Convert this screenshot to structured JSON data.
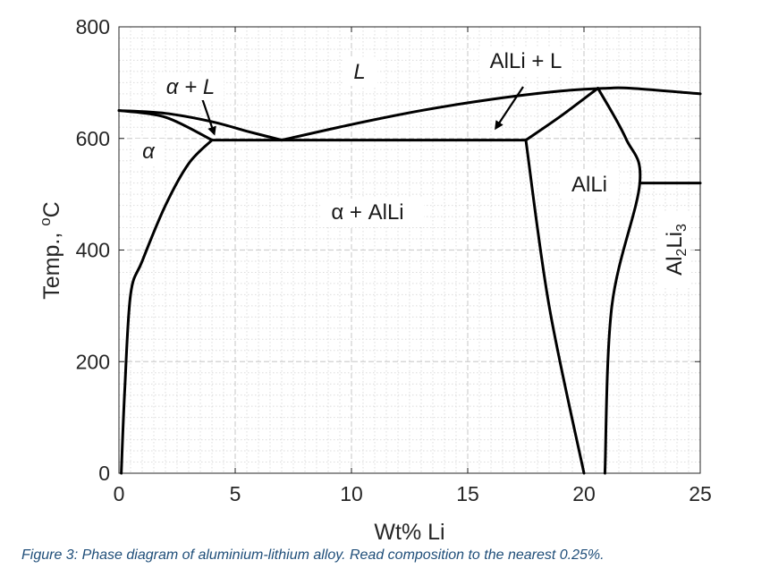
{
  "chart_data": {
    "type": "line",
    "title": "",
    "xlabel": "Wt% Li",
    "ylabel": "Temp., oC",
    "ylabel_main": "Temp., ",
    "ylabel_superscript": "o",
    "ylabel_unit": "C",
    "xlim": [
      0,
      25
    ],
    "ylim": [
      0,
      800
    ],
    "xticks": [
      0,
      5,
      10,
      15,
      20,
      25
    ],
    "yticks": [
      0,
      200,
      400,
      600,
      800
    ],
    "grid": "dotted minor grid with dashed major grid",
    "line_color": "#000000",
    "phase_boundaries": [
      {
        "name": "alpha solvus",
        "points": [
          [
            0.1,
            0
          ],
          [
            0.25,
            150
          ],
          [
            0.5,
            320
          ],
          [
            1,
            380
          ],
          [
            2,
            480
          ],
          [
            3,
            555
          ],
          [
            4,
            597
          ]
        ]
      },
      {
        "name": "alpha solidus",
        "points": [
          [
            0,
            650
          ],
          [
            2,
            638
          ],
          [
            4,
            597
          ]
        ]
      },
      {
        "name": "liquidus left",
        "points": [
          [
            0,
            650
          ],
          [
            2,
            645
          ],
          [
            4,
            630
          ],
          [
            5.5,
            613
          ],
          [
            7,
            597
          ]
        ]
      },
      {
        "name": "liquidus right",
        "points": [
          [
            7,
            597
          ],
          [
            10,
            625
          ],
          [
            13,
            650
          ],
          [
            16,
            670
          ],
          [
            19,
            685
          ],
          [
            21,
            690
          ],
          [
            22,
            690
          ],
          [
            25,
            680
          ]
        ]
      },
      {
        "name": "eutectic isotherm",
        "points": [
          [
            4,
            597
          ],
          [
            17.5,
            597
          ]
        ]
      },
      {
        "name": "AlLi left boundary",
        "points": [
          [
            17.5,
            597
          ],
          [
            18.5,
            300
          ],
          [
            20,
            0
          ]
        ]
      },
      {
        "name": "AlLi liquidus left",
        "points": [
          [
            17.5,
            597
          ],
          [
            19,
            640
          ],
          [
            20.6,
            690
          ]
        ]
      },
      {
        "name": "AlLi right boundary",
        "points": [
          [
            20.6,
            690
          ],
          [
            21.8,
            600
          ],
          [
            22.4,
            520
          ],
          [
            21.2,
            300
          ],
          [
            20.9,
            0
          ]
        ]
      },
      {
        "name": "peritectic isotherm",
        "points": [
          [
            22.4,
            520
          ],
          [
            25,
            520
          ]
        ]
      }
    ],
    "annotations": [
      {
        "text": "α + L",
        "arrow_to": [
          4.1,
          608
        ]
      },
      {
        "text": "AlLi + L",
        "arrow_to": [
          16.2,
          618
        ]
      }
    ]
  },
  "region_labels": {
    "alpha_plus_liquid": "α + L",
    "liquid": "L",
    "alli_plus_liquid": "AlLi + L",
    "alpha": "α",
    "alpha_plus_alli": "α + AlLi",
    "alli": "AlLi",
    "al2li3_main": "Al",
    "al2li3_sub1": "2",
    "al2li3_mid": "Li",
    "al2li3_sub2": "3"
  },
  "caption": "Figure 3: Phase diagram of aluminium-lithium alloy. Read composition to the nearest 0.25%."
}
